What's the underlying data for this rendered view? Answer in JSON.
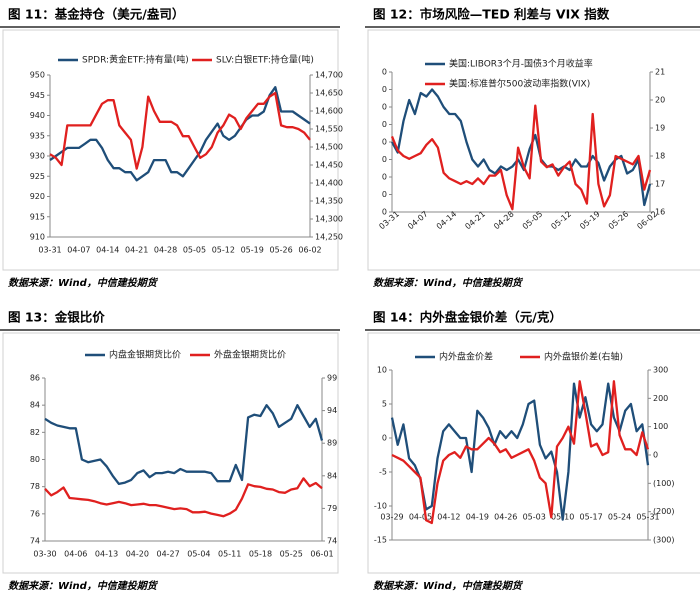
{
  "chart_data": [
    {
      "type": "line",
      "title": "图 11：基金持仓（美元/盎司）",
      "source": "数据来源：Wind，中信建投期货",
      "categories": [
        "03-31",
        null,
        null,
        null,
        null,
        "04-07",
        null,
        null,
        null,
        null,
        "04-14",
        null,
        null,
        null,
        null,
        "04-21",
        null,
        null,
        null,
        null,
        "04-28",
        null,
        null,
        null,
        null,
        "05-05",
        null,
        null,
        null,
        null,
        "05-12",
        null,
        null,
        null,
        null,
        "05-19",
        null,
        null,
        null,
        null,
        "05-26",
        null,
        null,
        null,
        null,
        "06-02"
      ],
      "ylim": [
        910,
        950
      ],
      "yticks": [
        950,
        945,
        940,
        935,
        930,
        925,
        920,
        915,
        910
      ],
      "y2lim": [
        14250,
        14700
      ],
      "y2ticks": [
        {
          "value": 14700,
          "label": "14,700"
        },
        {
          "value": 14650,
          "label": "14,650"
        },
        {
          "value": 14600,
          "label": "14,600"
        },
        {
          "value": 14550,
          "label": "14,550"
        },
        {
          "value": 14500,
          "label": "14,500"
        },
        {
          "value": 14450,
          "label": "14,450"
        },
        {
          "value": 14400,
          "label": "14,400"
        },
        {
          "value": 14350,
          "label": "14,350"
        },
        {
          "value": 14300,
          "label": "14,300"
        },
        {
          "value": 14250,
          "label": "14,250"
        }
      ],
      "series": [
        {
          "name": "SPDR:黄金ETF:持有量(吨)",
          "color": "#1f4e79",
          "values": [
            929,
            930,
            931,
            932,
            932,
            932,
            933,
            934,
            934,
            932,
            929,
            927,
            927,
            926,
            926,
            924,
            925,
            926,
            929,
            929,
            929,
            926,
            926,
            925,
            927,
            929,
            931,
            934,
            936,
            938,
            935,
            934,
            935,
            937,
            939,
            940,
            940,
            941,
            945,
            947,
            941,
            941,
            941,
            940,
            939,
            938
          ]
        },
        {
          "name": "SLV:白银ETF:持仓量(吨)",
          "color": "#e0201f",
          "axis": "y2",
          "values": [
            14480,
            14470,
            14450,
            14560,
            14560,
            14560,
            14560,
            14560,
            14590,
            14620,
            14630,
            14630,
            14560,
            14540,
            14520,
            14440,
            14500,
            14640,
            14600,
            14570,
            14570,
            14570,
            14560,
            14530,
            14530,
            14500,
            14470,
            14480,
            14500,
            14540,
            14560,
            14590,
            14580,
            14550,
            14580,
            14600,
            14620,
            14620,
            14640,
            14650,
            14560,
            14555,
            14555,
            14550,
            14540,
            14520
          ]
        }
      ]
    },
    {
      "type": "line",
      "title": "图 12：市场风险—TED 利差与 VIX 指数",
      "source": "数据来源：Wind，中信建投期货",
      "categories": [
        "03-31",
        null,
        null,
        null,
        null,
        "04-07",
        null,
        null,
        null,
        null,
        "04-14",
        null,
        null,
        null,
        null,
        "04-21",
        null,
        null,
        null,
        null,
        "04-28",
        null,
        null,
        null,
        null,
        "05-05",
        null,
        null,
        null,
        null,
        "05-12",
        null,
        null,
        null,
        null,
        "05-19",
        null,
        null,
        null,
        null,
        "05-26",
        null,
        null,
        null,
        null,
        "06-02"
      ],
      "ylim": [
        0.1,
        0.5
      ],
      "yticks": [
        {
          "value": 0.5,
          "label": "0"
        },
        {
          "value": 0.45,
          "label": "0"
        },
        {
          "value": 0.4,
          "label": "0"
        },
        {
          "value": 0.35,
          "label": "0"
        },
        {
          "value": 0.3,
          "label": "0"
        },
        {
          "value": 0.25,
          "label": "0"
        },
        {
          "value": 0.2,
          "label": "0"
        },
        {
          "value": 0.15,
          "label": "0"
        },
        {
          "value": 0.1,
          "label": "0"
        }
      ],
      "y2lim": [
        16,
        21
      ],
      "y2ticks": [
        21,
        20,
        19,
        18,
        17,
        16
      ],
      "series": [
        {
          "name": "美国:LIBOR3个月-国债3个月收益率",
          "color": "#1f4e79",
          "values": [
            0.3,
            0.27,
            0.36,
            0.42,
            0.38,
            0.44,
            0.43,
            0.45,
            0.43,
            0.4,
            0.38,
            0.38,
            0.36,
            0.3,
            0.25,
            0.23,
            0.25,
            0.22,
            0.21,
            0.23,
            0.22,
            0.23,
            0.25,
            0.22,
            0.28,
            0.32,
            0.25,
            0.23,
            0.23,
            0.22,
            0.23,
            0.22,
            0.25,
            0.23,
            0.23,
            0.26,
            0.24,
            0.19,
            0.23,
            0.25,
            0.26,
            0.21,
            0.22,
            0.25,
            0.12,
            0.18
          ]
        },
        {
          "name": "美国:标准普尔500波动率指数(VIX)",
          "color": "#e0201f",
          "axis": "y2",
          "values": [
            18.7,
            18.2,
            18.0,
            17.9,
            18.0,
            18.1,
            18.4,
            18.6,
            18.3,
            17.4,
            17.2,
            17.1,
            17.0,
            17.1,
            17.0,
            17.2,
            17.0,
            17.3,
            17.3,
            17.5,
            16.6,
            16.1,
            18.3,
            17.6,
            17.2,
            19.8,
            17.8,
            17.6,
            17.7,
            17.3,
            17.6,
            17.8,
            17.0,
            16.8,
            16.3,
            19.5,
            17.0,
            16.2,
            16.6,
            18.0,
            17.9,
            17.8,
            17.7,
            18.0,
            16.8,
            17.5
          ]
        }
      ]
    },
    {
      "type": "line",
      "title": "图 13：金银比价",
      "source": "数据来源：Wind，中信建投期货",
      "categories": [
        "03-30",
        null,
        null,
        null,
        null,
        "04-06",
        null,
        null,
        null,
        null,
        "04-13",
        null,
        null,
        null,
        null,
        "04-20",
        null,
        null,
        null,
        null,
        "04-27",
        null,
        null,
        null,
        null,
        "05-04",
        null,
        null,
        null,
        null,
        "05-11",
        null,
        null,
        null,
        null,
        "05-18",
        null,
        null,
        null,
        null,
        "05-25",
        null,
        null,
        null,
        null,
        "06-01"
      ],
      "ylim": [
        74,
        86
      ],
      "yticks": [
        86,
        84,
        82,
        80,
        78,
        76,
        74
      ],
      "y2lim": [
        74,
        99
      ],
      "y2ticks": [
        99,
        94,
        89,
        84,
        79,
        74
      ],
      "series": [
        {
          "name": "内盘金银期货比价",
          "color": "#1f4e79",
          "values": [
            83.0,
            82.7,
            82.5,
            82.4,
            82.3,
            82.3,
            80.0,
            79.8,
            79.9,
            80.0,
            79.5,
            78.8,
            78.2,
            78.3,
            78.5,
            79.0,
            79.2,
            78.7,
            79.0,
            79.0,
            79.1,
            79.0,
            79.3,
            79.1,
            79.1,
            79.1,
            79.1,
            79.0,
            78.4,
            78.4,
            78.4,
            79.6,
            78.5,
            83.1,
            83.3,
            83.2,
            84.0,
            83.4,
            82.4,
            82.7,
            83.0,
            84.0,
            83.2,
            82.4,
            83.0,
            81.4
          ]
        },
        {
          "name": "外盘金银期货比价",
          "color": "#e0201f",
          "axis": "y2",
          "values": [
            82.0,
            81.0,
            81.5,
            82.2,
            80.6,
            80.5,
            80.4,
            80.3,
            80.1,
            79.8,
            79.6,
            79.8,
            80.0,
            79.8,
            79.5,
            79.6,
            79.7,
            79.5,
            79.5,
            79.3,
            79.1,
            78.9,
            79.0,
            78.9,
            78.4,
            78.4,
            78.5,
            78.2,
            78.0,
            77.8,
            78.2,
            78.8,
            80.5,
            82.7,
            82.4,
            82.3,
            82.0,
            81.9,
            81.5,
            81.4,
            81.9,
            82.1,
            83.6,
            82.4,
            82.9,
            82.1
          ]
        }
      ]
    },
    {
      "type": "line",
      "title": "图 14：内外盘金银价差（元/克）",
      "source": "数据来源：Wind，中信建投期货",
      "categories": [
        "03-29",
        null,
        null,
        null,
        null,
        "04-05",
        null,
        null,
        null,
        null,
        "04-12",
        null,
        null,
        null,
        null,
        "04-19",
        null,
        null,
        null,
        null,
        "04-26",
        null,
        null,
        null,
        null,
        "05-03",
        null,
        null,
        null,
        null,
        "05-10",
        null,
        null,
        null,
        null,
        "05-17",
        null,
        null,
        null,
        null,
        "05-24",
        null,
        null,
        null,
        null,
        "05-31"
      ],
      "ylim": [
        -15,
        10
      ],
      "yticks": [
        10,
        5,
        0,
        -5,
        -10,
        -15
      ],
      "y2lim": [
        -300,
        300
      ],
      "y2ticks": [
        300,
        200,
        100,
        0,
        {
          "value": -100,
          "label": "(100)"
        },
        {
          "value": -200,
          "label": "(200)"
        },
        {
          "value": -300,
          "label": "(300)"
        }
      ],
      "series": [
        {
          "name": "内外盘金价差",
          "color": "#1f4e79",
          "values": [
            3,
            -1,
            2,
            -3,
            -4,
            -6,
            -10.5,
            -10,
            -3,
            1,
            2,
            1,
            0,
            0,
            -5,
            4,
            3,
            1.5,
            -1,
            1,
            0,
            1,
            0,
            2,
            5,
            5.5,
            -1,
            -3,
            -2,
            -5,
            -12,
            -5,
            8,
            3,
            6,
            2,
            1,
            2,
            8,
            3,
            1,
            4,
            5,
            1,
            2,
            -4
          ]
        },
        {
          "name": "内外盘银价差(右轴)",
          "color": "#e0201f",
          "axis": "y2",
          "values": [
            0,
            -10,
            -20,
            -40,
            -60,
            -80,
            -230,
            -240,
            -100,
            -20,
            0,
            10,
            -10,
            30,
            20,
            20,
            40,
            60,
            40,
            10,
            20,
            -10,
            0,
            10,
            20,
            -20,
            -80,
            -100,
            -220,
            30,
            60,
            100,
            40,
            260,
            150,
            30,
            40,
            0,
            10,
            260,
            70,
            20,
            20,
            0,
            80,
            20
          ]
        }
      ]
    }
  ]
}
